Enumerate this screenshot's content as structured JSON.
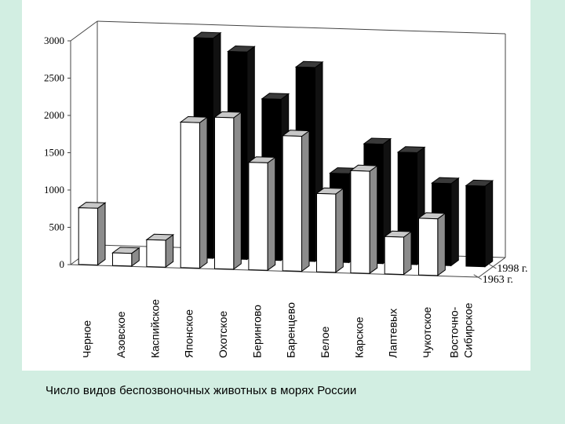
{
  "caption": "Число видов беспозвоночных животных в морях России",
  "chart_data": {
    "type": "bar",
    "title": "",
    "xlabel": "",
    "ylabel": "",
    "ylim": [
      0,
      3000
    ],
    "yticks": [
      0,
      500,
      1000,
      1500,
      2000,
      2500,
      3000
    ],
    "categories": [
      "Черное",
      "Азовское",
      "Каспийское",
      "Японское",
      "Охотское",
      "Берингово",
      "Баренцево",
      "Белое",
      "Карское",
      "Лаптевых",
      "Чукотское",
      [
        "Восточно-",
        "Сибирское"
      ]
    ],
    "series": [
      {
        "name": "1963 г.",
        "color": "#ffffff",
        "values": [
          760,
          170,
          360,
          1950,
          2030,
          1440,
          1810,
          1050,
          1370,
          500,
          760,
          null
        ]
      },
      {
        "name": "1998 г.",
        "color": "#000000",
        "values": [
          null,
          null,
          null,
          2950,
          2780,
          2160,
          2600,
          1190,
          1600,
          1500,
          1100,
          1080
        ]
      }
    ],
    "legend": "right",
    "grid": false
  }
}
